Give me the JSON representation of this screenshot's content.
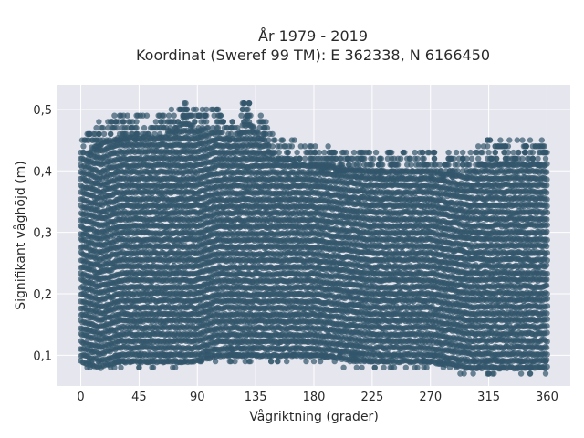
{
  "chart_data": {
    "type": "scatter",
    "title": "År 1979 - 2019",
    "subtitle": "Koordinat (Sweref 99 TM): E 362338, N 6166450",
    "xlabel": "Vågriktning (grader)",
    "ylabel": "Signifikant våghöjd (m)",
    "xlim": [
      -18,
      378
    ],
    "ylim": [
      0.05,
      0.54
    ],
    "xticks": [
      0,
      45,
      90,
      135,
      180,
      225,
      270,
      315,
      360
    ],
    "yticks": [
      0.1,
      0.2,
      0.3,
      0.4,
      0.5
    ],
    "ytick_labels": [
      "0,1",
      "0,2",
      "0,3",
      "0,4",
      "0,5"
    ],
    "grid": true,
    "marker_color": "#32556b",
    "background_color": "#e6e6ef",
    "envelope": {
      "x": [
        0,
        15,
        30,
        45,
        60,
        75,
        80,
        90,
        105,
        120,
        127,
        135,
        150,
        180,
        225,
        270,
        300,
        315,
        330,
        345,
        360
      ],
      "ymin": [
        0.08,
        0.07,
        0.08,
        0.08,
        0.08,
        0.08,
        0.08,
        0.08,
        0.09,
        0.09,
        0.09,
        0.09,
        0.09,
        0.09,
        0.08,
        0.08,
        0.07,
        0.07,
        0.07,
        0.07,
        0.07
      ],
      "ymax": [
        0.45,
        0.48,
        0.49,
        0.49,
        0.49,
        0.5,
        0.52,
        0.5,
        0.5,
        0.48,
        0.52,
        0.5,
        0.46,
        0.44,
        0.43,
        0.43,
        0.43,
        0.45,
        0.45,
        0.45,
        0.45
      ]
    }
  }
}
